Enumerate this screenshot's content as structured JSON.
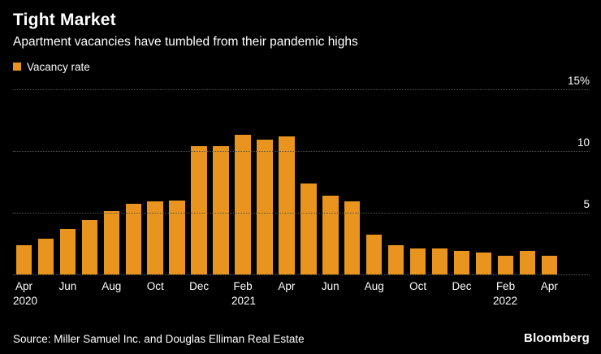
{
  "header": {
    "title": "Tight Market",
    "subtitle": "Apartment vacancies have tumbled from their pandemic highs"
  },
  "legend": {
    "label": "Vacancy rate"
  },
  "chart_data": {
    "type": "bar",
    "title": "Tight Market",
    "subtitle": "Apartment vacancies have tumbled from their pandemic highs",
    "series_name": "Vacancy rate",
    "unit": "%",
    "bar_color": "#e8941f",
    "grid": true,
    "legend_position": "top-left",
    "ylim": [
      0,
      15
    ],
    "yticks": [
      {
        "value": 15,
        "label": "15%"
      },
      {
        "value": 10,
        "label": "10"
      },
      {
        "value": 5,
        "label": "5"
      }
    ],
    "categories": [
      "Apr 2020",
      "May 2020",
      "Jun 2020",
      "Jul 2020",
      "Aug 2020",
      "Sep 2020",
      "Oct 2020",
      "Nov 2020",
      "Dec 2020",
      "Jan 2021",
      "Feb 2021",
      "Mar 2021",
      "Apr 2021",
      "May 2021",
      "Jun 2021",
      "Jul 2021",
      "Aug 2021",
      "Sep 2021",
      "Oct 2021",
      "Nov 2021",
      "Dec 2021",
      "Jan 2022",
      "Feb 2022",
      "Mar 2022",
      "Apr 2022"
    ],
    "values": [
      2.4,
      2.9,
      3.7,
      4.4,
      5.1,
      5.7,
      5.9,
      6.0,
      10.4,
      10.4,
      11.3,
      10.9,
      11.2,
      7.4,
      6.4,
      5.9,
      3.2,
      2.4,
      2.1,
      2.1,
      1.9,
      1.8,
      1.5,
      1.9,
      1.5
    ],
    "x_ticks": [
      {
        "index": 0,
        "label": "Apr",
        "year": "2020"
      },
      {
        "index": 2,
        "label": "Jun"
      },
      {
        "index": 4,
        "label": "Aug"
      },
      {
        "index": 6,
        "label": "Oct"
      },
      {
        "index": 8,
        "label": "Dec"
      },
      {
        "index": 10,
        "label": "Feb",
        "year": "2021"
      },
      {
        "index": 12,
        "label": "Apr"
      },
      {
        "index": 14,
        "label": "Jun"
      },
      {
        "index": 16,
        "label": "Aug"
      },
      {
        "index": 18,
        "label": "Oct"
      },
      {
        "index": 20,
        "label": "Dec"
      },
      {
        "index": 22,
        "label": "Feb",
        "year": "2022"
      },
      {
        "index": 24,
        "label": "Apr"
      }
    ]
  },
  "footer": {
    "source": "Source: Miller Samuel Inc. and Douglas Elliman Real Estate",
    "brand": "Bloomberg"
  }
}
